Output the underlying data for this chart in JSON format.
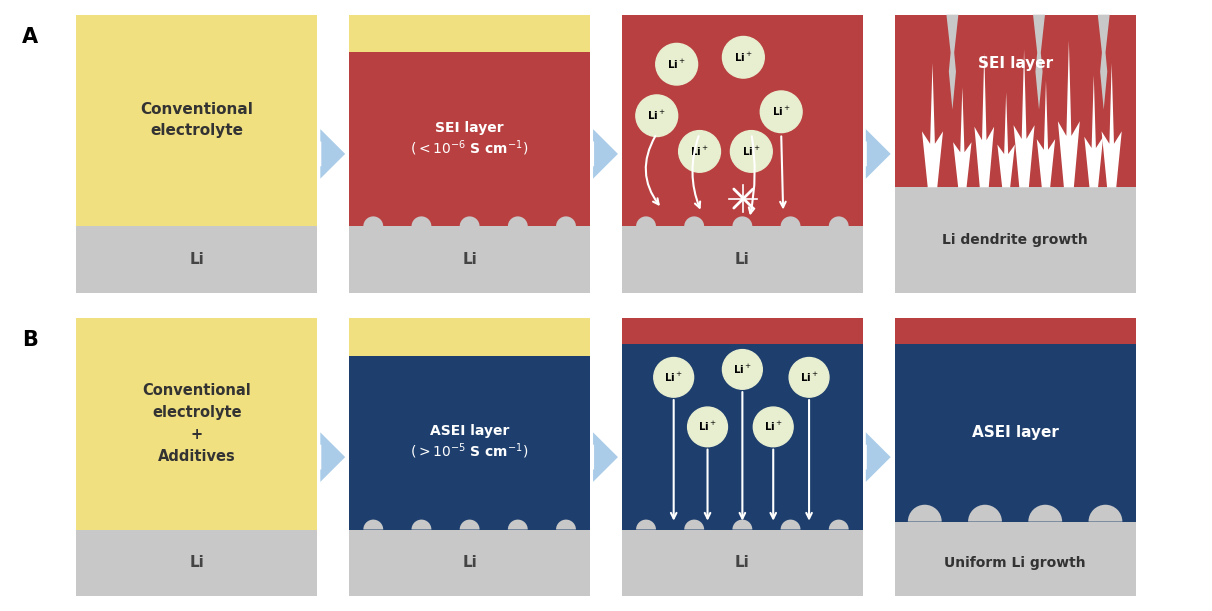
{
  "bg_color": "#ffffff",
  "yellow": "#F0E080",
  "red": "#B84040",
  "dark_blue": "#1E3F6E",
  "light_gray": "#C8C8C8",
  "arrow_color": "#AACCE8",
  "white": "#ffffff",
  "li_circle_color": "#E8EED0",
  "li_circle_edge": "#A8B880",
  "label_A": "A",
  "label_B": "B",
  "text_conventional": "Conventional\nelectrolyte",
  "text_conventional_b": "Conventional\nelectrolyte\n+\nAdditives",
  "text_sei_layer": "SEI layer",
  "text_asei_layer": "ASEI layer",
  "text_dendrite": "Li dendrite growth",
  "text_uniform": "Uniform Li growth",
  "text_li": "Li"
}
